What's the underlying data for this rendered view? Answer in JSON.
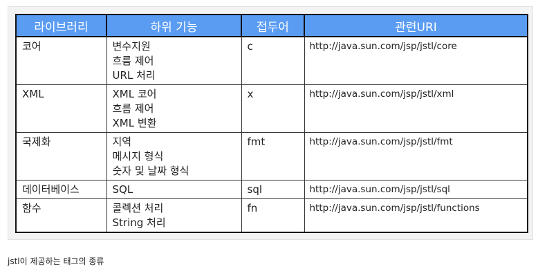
{
  "table": {
    "headers": [
      "라이브러리",
      "하위 기능",
      "접두어",
      "관련URI"
    ],
    "rows": [
      {
        "library": "코어",
        "features": [
          "변수지원",
          "흐름 제어",
          "URL 처리"
        ],
        "prefix": "c",
        "uri": "http://java.sun.com/jsp/jstl/core"
      },
      {
        "library": "XML",
        "features": [
          "XML 코어",
          "흐름 제어",
          "XML 변환"
        ],
        "prefix": "x",
        "uri": "http://java.sun.com/jsp/jstl/xml"
      },
      {
        "library": "국제화",
        "features": [
          "지역",
          "메시지 형식",
          "숫자 및 날짜 형식"
        ],
        "prefix": "fmt",
        "uri": "http://java.sun.com/jsp/jstl/fmt"
      },
      {
        "library": "데이터베이스",
        "features": [
          "SQL"
        ],
        "prefix": "sql",
        "uri": "http://java.sun.com/jsp/jstl/sql"
      },
      {
        "library": "함수",
        "features": [
          "콜렉션 처리",
          "String 처리"
        ],
        "prefix": "fn",
        "uri": "http://java.sun.com/jsp/jstl/functions"
      }
    ]
  },
  "caption": "jstl이 제공하는 태그의 종류",
  "colors": {
    "header_bg": "#5b9cf3",
    "header_text": "#ffffff",
    "border": "#111111"
  }
}
